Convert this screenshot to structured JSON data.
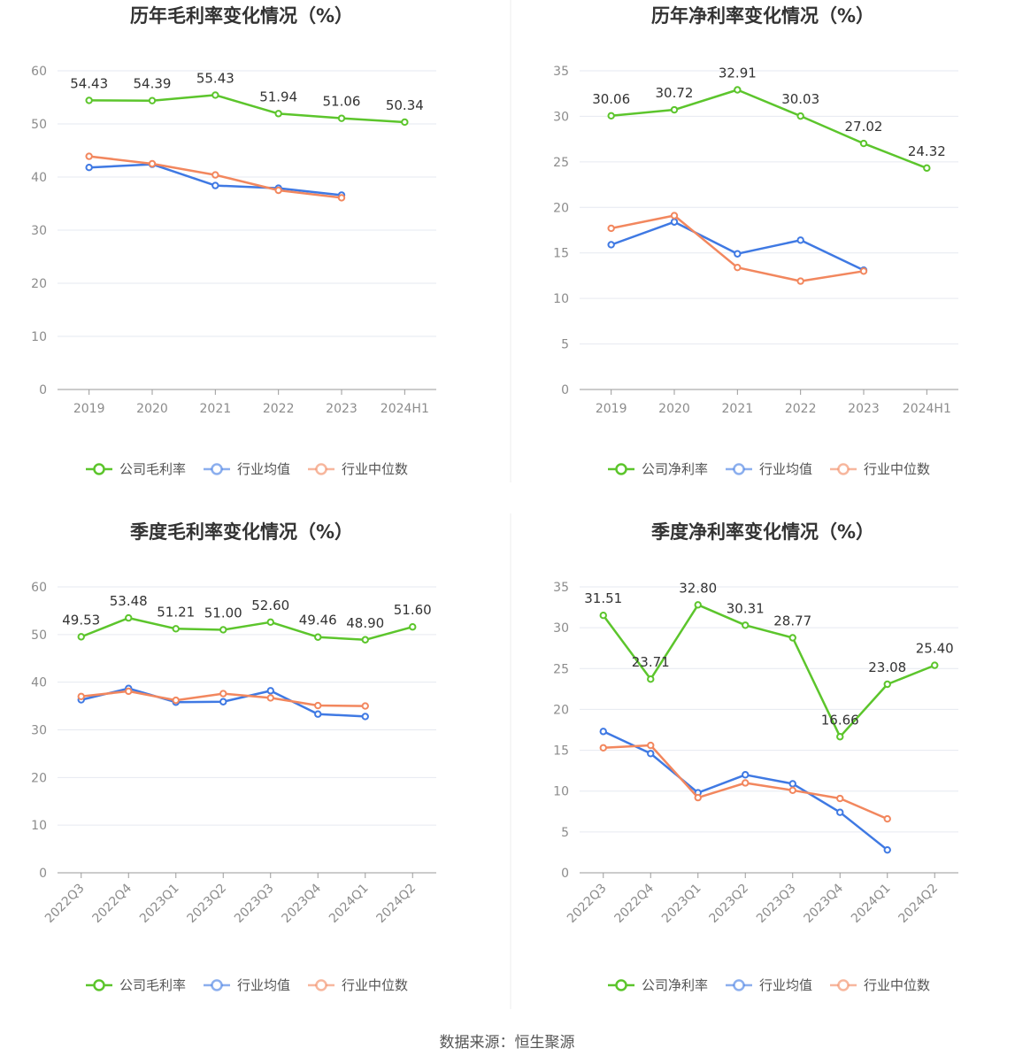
{
  "colors": {
    "company": "#5cc52c",
    "avg": "#3f79e3",
    "median": "#f2875e"
  },
  "source_text": "数据来源：恒生聚源",
  "chart_data": [
    {
      "type": "line",
      "title": "历年毛利率变化情况（%）",
      "categories": [
        "2019",
        "2020",
        "2021",
        "2022",
        "2023",
        "2024H1"
      ],
      "ylim": [
        0,
        60
      ],
      "yticks": [
        0,
        10,
        20,
        30,
        40,
        50,
        60
      ],
      "rotate_labels": false,
      "series": [
        {
          "name": "公司毛利率",
          "key": "company",
          "values": [
            54.43,
            54.39,
            55.43,
            51.94,
            51.06,
            50.34
          ],
          "labels": [
            "54.43",
            "54.39",
            "55.43",
            "51.94",
            "51.06",
            "50.34"
          ]
        },
        {
          "name": "行业均值",
          "key": "avg",
          "values": [
            41.8,
            42.4,
            38.4,
            37.9,
            36.6,
            null
          ]
        },
        {
          "name": "行业中位数",
          "key": "median",
          "values": [
            43.9,
            42.5,
            40.4,
            37.5,
            36.1,
            null
          ]
        }
      ]
    },
    {
      "type": "line",
      "title": "历年净利率变化情况（%）",
      "categories": [
        "2019",
        "2020",
        "2021",
        "2022",
        "2023",
        "2024H1"
      ],
      "ylim": [
        0,
        35
      ],
      "yticks": [
        0,
        5,
        10,
        15,
        20,
        25,
        30,
        35
      ],
      "rotate_labels": false,
      "series": [
        {
          "name": "公司净利率",
          "key": "company",
          "values": [
            30.06,
            30.72,
            32.91,
            30.03,
            27.02,
            24.32
          ],
          "labels": [
            "30.06",
            "30.72",
            "32.91",
            "30.03",
            "27.02",
            "24.32"
          ]
        },
        {
          "name": "行业均值",
          "key": "avg",
          "values": [
            15.9,
            18.4,
            14.9,
            16.4,
            13.1,
            null
          ]
        },
        {
          "name": "行业中位数",
          "key": "median",
          "values": [
            17.7,
            19.1,
            13.4,
            11.9,
            13.0,
            null
          ]
        }
      ]
    },
    {
      "type": "line",
      "title": "季度毛利率变化情况（%）",
      "categories": [
        "2022Q3",
        "2022Q4",
        "2023Q1",
        "2023Q2",
        "2023Q3",
        "2023Q4",
        "2024Q1",
        "2024Q2"
      ],
      "ylim": [
        0,
        60
      ],
      "yticks": [
        0,
        10,
        20,
        30,
        40,
        50,
        60
      ],
      "rotate_labels": true,
      "series": [
        {
          "name": "公司毛利率",
          "key": "company",
          "values": [
            49.53,
            53.48,
            51.21,
            51.0,
            52.6,
            49.46,
            48.9,
            51.6
          ],
          "labels": [
            "49.53",
            "53.48",
            "51.21",
            "51.00",
            "52.60",
            "49.46",
            "48.90",
            "51.60"
          ]
        },
        {
          "name": "行业均值",
          "key": "avg",
          "values": [
            36.3,
            38.7,
            35.8,
            35.9,
            38.2,
            33.3,
            32.8,
            null
          ]
        },
        {
          "name": "行业中位数",
          "key": "median",
          "values": [
            37.0,
            38.1,
            36.2,
            37.6,
            36.7,
            35.1,
            35.0,
            null
          ]
        }
      ]
    },
    {
      "type": "line",
      "title": "季度净利率变化情况（%）",
      "categories": [
        "2022Q3",
        "2022Q4",
        "2023Q1",
        "2023Q2",
        "2023Q3",
        "2023Q4",
        "2024Q1",
        "2024Q2"
      ],
      "ylim": [
        0,
        35
      ],
      "yticks": [
        0,
        5,
        10,
        15,
        20,
        25,
        30,
        35
      ],
      "rotate_labels": true,
      "series": [
        {
          "name": "公司净利率",
          "key": "company",
          "values": [
            31.51,
            23.71,
            32.8,
            30.31,
            28.77,
            16.66,
            23.08,
            25.4
          ],
          "labels": [
            "31.51",
            "23.71",
            "32.80",
            "30.31",
            "28.77",
            "16.66",
            "23.08",
            "25.40"
          ]
        },
        {
          "name": "行业均值",
          "key": "avg",
          "values": [
            17.3,
            14.6,
            9.8,
            12.0,
            10.9,
            7.4,
            2.8,
            null
          ]
        },
        {
          "name": "行业中位数",
          "key": "median",
          "values": [
            15.3,
            15.6,
            9.2,
            11.0,
            10.1,
            9.1,
            6.6,
            null
          ]
        }
      ]
    }
  ]
}
